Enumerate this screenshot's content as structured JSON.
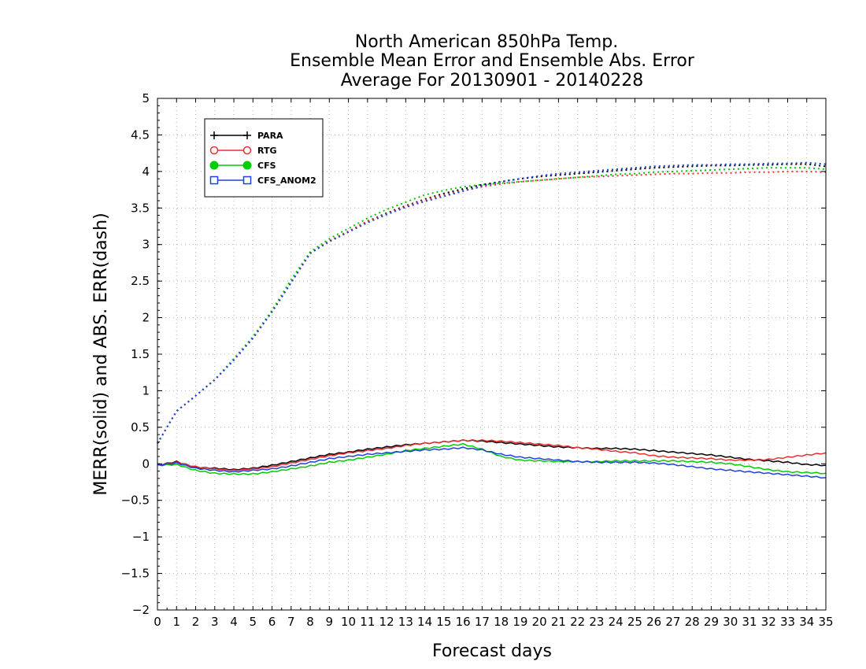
{
  "chart_data": {
    "type": "line",
    "title": [
      "North American 850hPa Temp.",
      "Ensemble Mean Error and Ensemble Abs. Error",
      "Average For 20130901 - 20140228"
    ],
    "xlabel": "Forecast days",
    "ylabel": "MERR(solid) and ABS. ERR(dash)",
    "xlim": [
      0,
      35
    ],
    "ylim": [
      -2,
      5
    ],
    "xticks": [
      0,
      1,
      2,
      3,
      4,
      5,
      6,
      7,
      8,
      9,
      10,
      11,
      12,
      13,
      14,
      15,
      16,
      17,
      18,
      19,
      20,
      21,
      22,
      23,
      24,
      25,
      26,
      27,
      28,
      29,
      30,
      31,
      32,
      33,
      34,
      35
    ],
    "yticks": [
      -2,
      -1.5,
      -1,
      -0.5,
      0,
      0.5,
      1,
      1.5,
      2,
      2.5,
      3,
      3.5,
      4,
      4.5,
      5
    ],
    "ytick_labels": [
      "−2",
      "−1.5",
      "−1",
      "−0.5",
      "0",
      "0.5",
      "1",
      "1.5",
      "2",
      "2.5",
      "3",
      "3.5",
      "4",
      "4.5",
      "5"
    ],
    "grid": true,
    "legend_position": "top-left",
    "x": [
      0,
      1,
      2,
      3,
      4,
      5,
      6,
      7,
      8,
      9,
      10,
      11,
      12,
      13,
      14,
      15,
      16,
      17,
      18,
      19,
      20,
      21,
      22,
      23,
      24,
      25,
      26,
      27,
      28,
      29,
      30,
      31,
      32,
      33,
      34,
      35
    ],
    "series": [
      {
        "name": "PARA",
        "color": "#000000",
        "marker": "plus",
        "merr": [
          -0.02,
          0.03,
          -0.05,
          -0.06,
          -0.08,
          -0.06,
          -0.02,
          0.03,
          0.08,
          0.13,
          0.16,
          0.2,
          0.23,
          0.26,
          0.28,
          0.3,
          0.32,
          0.31,
          0.29,
          0.27,
          0.25,
          0.23,
          0.22,
          0.21,
          0.21,
          0.2,
          0.18,
          0.16,
          0.14,
          0.12,
          0.09,
          0.06,
          0.04,
          0.02,
          -0.01,
          -0.02
        ],
        "abs_err": [
          0.28,
          0.72,
          0.93,
          1.15,
          1.42,
          1.72,
          2.08,
          2.48,
          2.88,
          3.05,
          3.18,
          3.32,
          3.43,
          3.53,
          3.62,
          3.7,
          3.76,
          3.82,
          3.86,
          3.9,
          3.93,
          3.95,
          3.97,
          3.99,
          4.01,
          4.03,
          4.05,
          4.06,
          4.07,
          4.08,
          4.08,
          4.09,
          4.09,
          4.1,
          4.1,
          4.07
        ]
      },
      {
        "name": "RTG",
        "color": "#e83030",
        "marker": "circle-open",
        "merr": [
          -0.02,
          0.02,
          -0.04,
          -0.07,
          -0.09,
          -0.07,
          -0.04,
          0.01,
          0.06,
          0.11,
          0.15,
          0.18,
          0.21,
          0.25,
          0.28,
          0.3,
          0.32,
          0.32,
          0.31,
          0.29,
          0.27,
          0.25,
          0.22,
          0.2,
          0.17,
          0.15,
          0.11,
          0.09,
          0.08,
          0.07,
          0.05,
          0.05,
          0.06,
          0.09,
          0.12,
          0.15
        ],
        "abs_err": [
          0.28,
          0.72,
          0.93,
          1.15,
          1.42,
          1.72,
          2.08,
          2.48,
          2.88,
          3.05,
          3.18,
          3.32,
          3.42,
          3.52,
          3.61,
          3.68,
          3.74,
          3.79,
          3.83,
          3.86,
          3.88,
          3.9,
          3.92,
          3.93,
          3.94,
          3.95,
          3.96,
          3.97,
          3.97,
          3.98,
          3.98,
          3.99,
          3.99,
          4.0,
          4.0,
          3.99
        ]
      },
      {
        "name": "CFS",
        "color": "#00cc00",
        "marker": "circle-filled",
        "merr": [
          -0.02,
          -0.01,
          -0.09,
          -0.13,
          -0.14,
          -0.14,
          -0.11,
          -0.07,
          -0.03,
          0.02,
          0.05,
          0.09,
          0.13,
          0.18,
          0.21,
          0.24,
          0.27,
          0.2,
          0.1,
          0.05,
          0.04,
          0.03,
          0.03,
          0.03,
          0.04,
          0.04,
          0.04,
          0.04,
          0.03,
          0.02,
          0.0,
          -0.04,
          -0.08,
          -0.11,
          -0.12,
          -0.13
        ],
        "abs_err": [
          0.28,
          0.72,
          0.93,
          1.15,
          1.44,
          1.74,
          2.1,
          2.52,
          2.9,
          3.08,
          3.22,
          3.36,
          3.48,
          3.58,
          3.68,
          3.74,
          3.79,
          3.82,
          3.84,
          3.86,
          3.88,
          3.9,
          3.92,
          3.94,
          3.96,
          3.97,
          3.99,
          4.0,
          4.01,
          4.02,
          4.03,
          4.04,
          4.05,
          4.05,
          4.05,
          4.03
        ]
      },
      {
        "name": "CFS_ANOM2",
        "color": "#2040e0",
        "marker": "square-open",
        "merr": [
          -0.02,
          0.01,
          -0.06,
          -0.09,
          -0.11,
          -0.09,
          -0.07,
          -0.03,
          0.02,
          0.07,
          0.1,
          0.13,
          0.15,
          0.17,
          0.19,
          0.2,
          0.22,
          0.19,
          0.13,
          0.09,
          0.07,
          0.05,
          0.03,
          0.02,
          0.02,
          0.02,
          0.01,
          -0.01,
          -0.04,
          -0.07,
          -0.09,
          -0.11,
          -0.13,
          -0.15,
          -0.17,
          -0.19
        ],
        "abs_err": [
          0.28,
          0.72,
          0.93,
          1.15,
          1.42,
          1.72,
          2.08,
          2.48,
          2.88,
          3.04,
          3.17,
          3.3,
          3.41,
          3.51,
          3.59,
          3.66,
          3.73,
          3.8,
          3.86,
          3.9,
          3.94,
          3.97,
          3.99,
          4.01,
          4.03,
          4.05,
          4.07,
          4.08,
          4.09,
          4.09,
          4.1,
          4.1,
          4.11,
          4.11,
          4.12,
          4.1
        ]
      }
    ]
  }
}
